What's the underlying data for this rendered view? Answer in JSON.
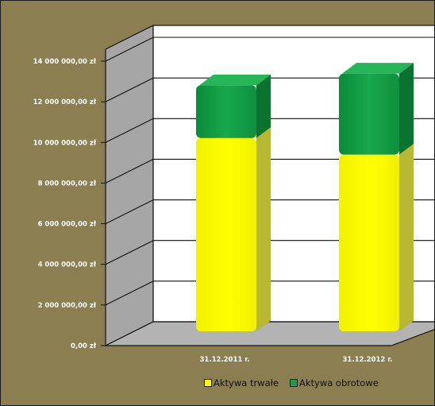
{
  "chart_data": {
    "type": "bar",
    "stacked": true,
    "three_d": true,
    "categories": [
      "31.12.2011 r.",
      "31.12.2012 r."
    ],
    "series": [
      {
        "name": "Aktywa trwałe",
        "values": [
          9900000,
          9050000
        ],
        "color": "#ffff00"
      },
      {
        "name": "Aktywa obrotowe",
        "values": [
          2700000,
          4150000
        ],
        "color": "#1a9e47"
      }
    ],
    "ylim": [
      0,
      14000000
    ],
    "y_ticks": [
      0,
      2000000,
      4000000,
      6000000,
      8000000,
      10000000,
      12000000,
      14000000
    ],
    "y_tick_labels": [
      "0,00 zł",
      "2 000 000,00 zł",
      "4 000 000,00 zł",
      "6 000 000,00 zł",
      "8 000 000,00 zł",
      "10 000 000,00 zł",
      "12 000 000,00 zł",
      "14 000 000,00 zł"
    ],
    "grid": true,
    "legend": "bottom-right",
    "background_color": "#8b7e51",
    "wall_color": "#ffffff",
    "side_wall_color": "#a6a6a6",
    "floor_color": "#b3b3b3"
  },
  "legend": {
    "item_1": "Aktywa trwałe",
    "item_2": "Aktywa obrotowe"
  }
}
